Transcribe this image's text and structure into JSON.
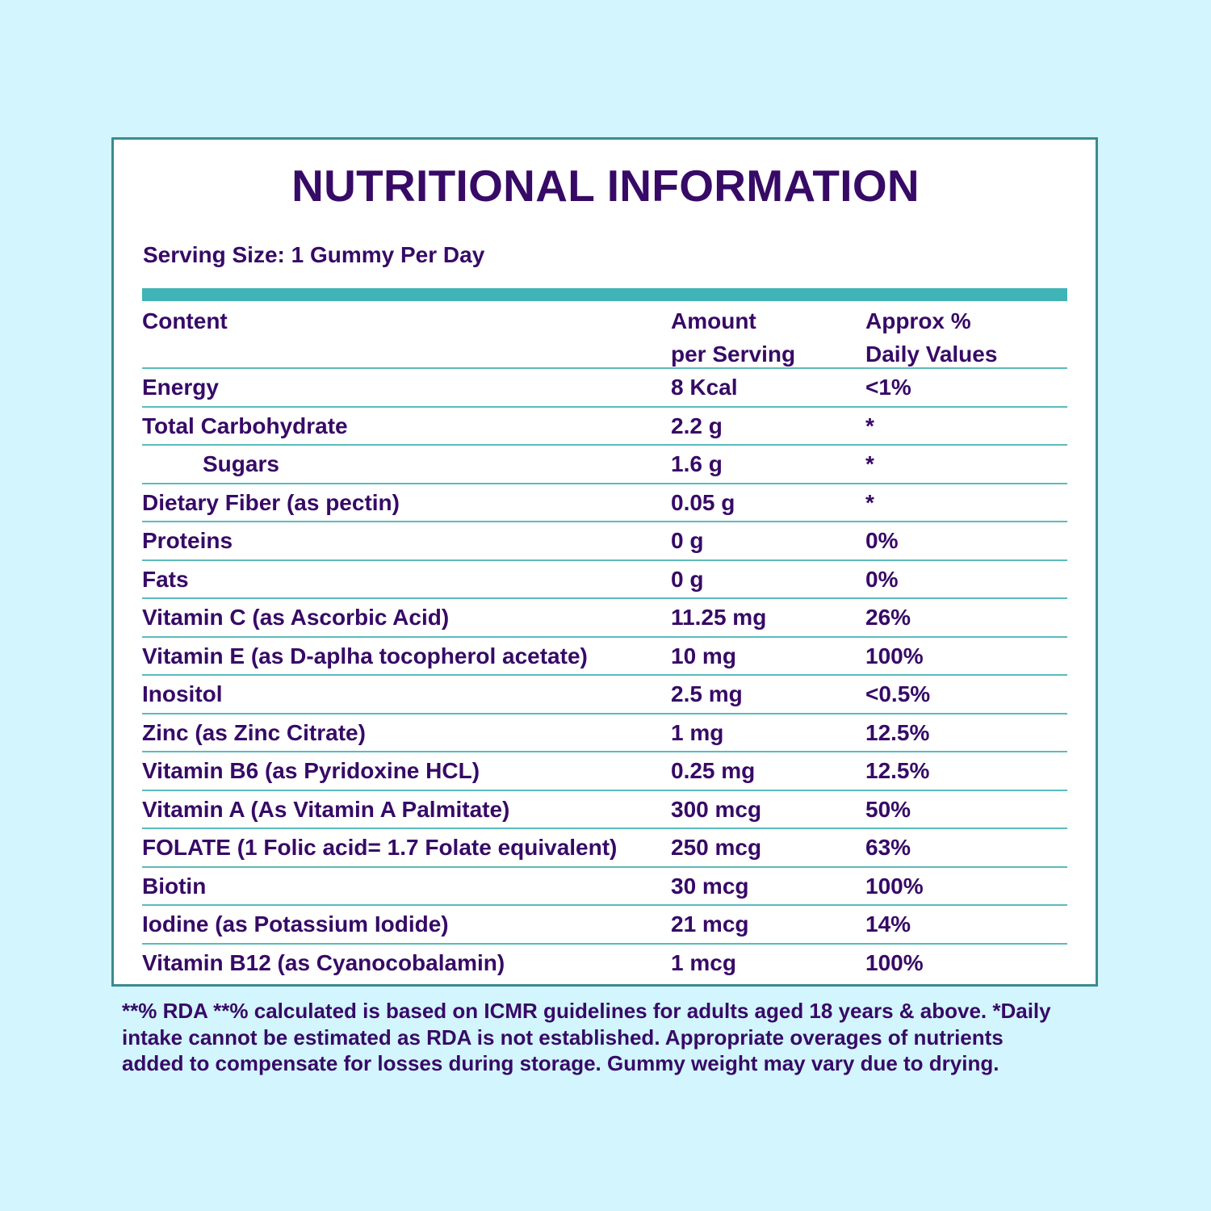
{
  "title": "NUTRITIONAL INFORMATION",
  "serving_size": "Serving Size: 1 Gummy Per Day",
  "header": {
    "content": "Content",
    "amount_line1": "Amount",
    "amount_line2": "per Serving",
    "daily_line1": "Approx %",
    "daily_line2": "Daily Values"
  },
  "rows": [
    {
      "content": "Energy",
      "amount": "8 Kcal",
      "daily": "<1%"
    },
    {
      "content": "Total Carbohydrate",
      "amount": "2.2 g",
      "daily": "*"
    },
    {
      "content": "Sugars",
      "amount": "1.6 g",
      "daily": "*"
    },
    {
      "content": "Dietary Fiber (as pectin)",
      "amount": "0.05 g",
      "daily": "*"
    },
    {
      "content": "Proteins",
      "amount": "0 g",
      "daily": "0%"
    },
    {
      "content": "Fats",
      "amount": "0 g",
      "daily": "0%"
    },
    {
      "content": "Vitamin C (as Ascorbic Acid)",
      "amount": "11.25 mg",
      "daily": "26%"
    },
    {
      "content": "Vitamin E (as D-aplha tocopherol acetate)",
      "amount": "10 mg",
      "daily": "100%"
    },
    {
      "content": "Inositol",
      "amount": "2.5 mg",
      "daily": "<0.5%"
    },
    {
      "content": "Zinc (as Zinc Citrate)",
      "amount": "1 mg",
      "daily": "12.5%"
    },
    {
      "content": "Vitamin B6 (as Pyridoxine HCL)",
      "amount": "0.25 mg",
      "daily": "12.5%"
    },
    {
      "content": "Vitamin A (As Vitamin A Palmitate)",
      "amount": "300 mcg",
      "daily": "50%"
    },
    {
      "content": "FOLATE (1 Folic acid= 1.7 Folate equivalent)",
      "amount": "250 mcg",
      "daily": "63%"
    },
    {
      "content": "Biotin",
      "amount": "30 mcg",
      "daily": "100%"
    },
    {
      "content": "Iodine (as Potassium Iodide)",
      "amount": "21 mcg",
      "daily": "14%"
    },
    {
      "content": "Vitamin B12 (as Cyanocobalamin)",
      "amount": "1 mcg",
      "daily": "100%"
    }
  ],
  "footnote": {
    "line1": "**% RDA **% calculated is based on ICMR guidelines for adults aged 18 years &  above. *Daily",
    "line2": "intake cannot be estimated as RDA is not established. Appropriate  overages of nutrients",
    "line3": "added to compensate for losses during storage. Gummy weight may vary due to drying."
  },
  "colors": {
    "background": "#d2f5fe",
    "text": "#370a66",
    "panel_border": "#3b8b8e",
    "accent_bar": "#3fb3b5",
    "row_divider": "#5bbbbd"
  }
}
